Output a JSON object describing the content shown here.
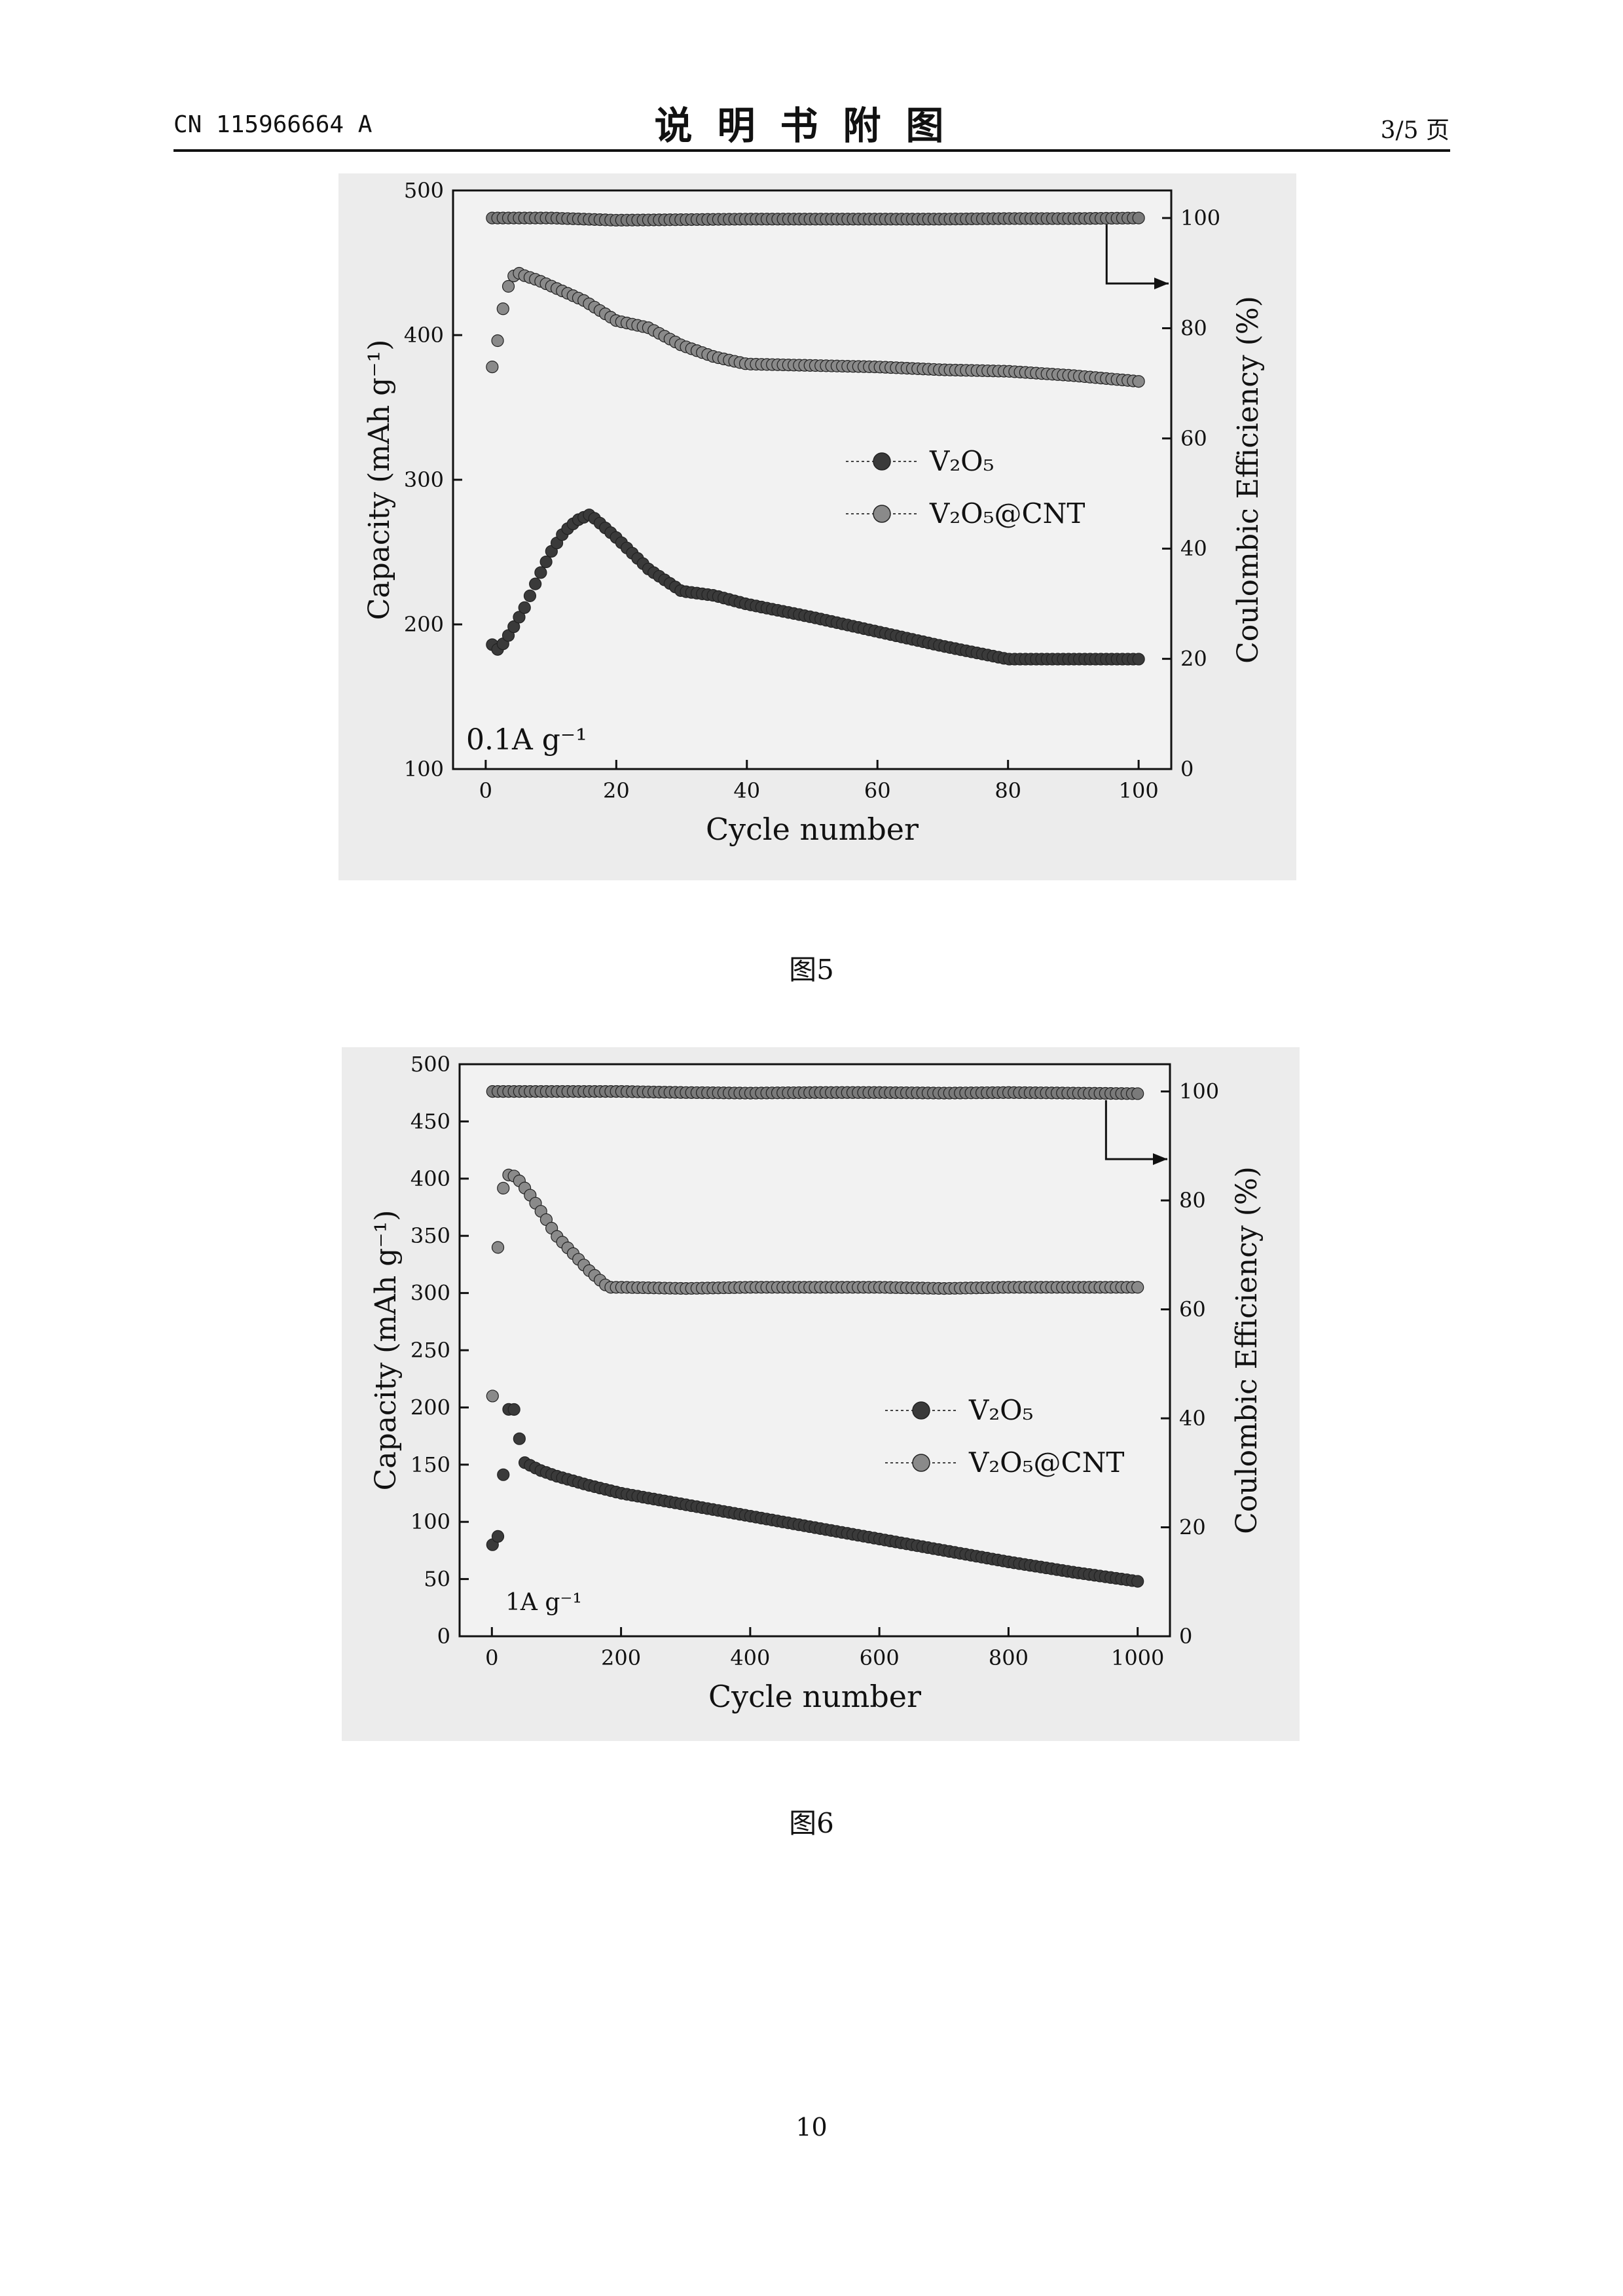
{
  "header": {
    "doc_number": "CN 115966664 A",
    "section_title": "说明书附图",
    "page_indicator": "3/5 页"
  },
  "figures": [
    {
      "caption": "图5",
      "current_label": "0.1A g⁻¹",
      "legend": [
        "V₂O₅",
        "V₂O₅@CNT"
      ]
    },
    {
      "caption": "图6",
      "current_label": "1A g⁻¹",
      "legend": [
        "V₂O₅",
        "V₂O₅@CNT"
      ]
    }
  ],
  "page_number": "10",
  "chart_data": [
    {
      "type": "scatter",
      "title": "",
      "xlabel": "Cycle number",
      "ylabel": "Capacity (mAh g⁻¹)",
      "y2label": "Coulombic Efficiency (%)",
      "xlim": [
        -5,
        105
      ],
      "ylim": [
        100,
        500
      ],
      "y2lim": [
        0,
        105
      ],
      "xticks": [
        0,
        20,
        40,
        60,
        80,
        100
      ],
      "yticks": [
        100,
        200,
        300,
        400,
        500
      ],
      "y2ticks": [
        0,
        20,
        40,
        60,
        80,
        100
      ],
      "grid": false,
      "legend_position": "center-right",
      "annotation": "0.1A g⁻¹",
      "series": [
        {
          "name": "V₂O₅",
          "axis": "left",
          "marker_color": "#3a3a3a",
          "x": [
            1,
            2,
            4,
            6,
            8,
            10,
            12,
            14,
            16,
            20,
            25,
            30,
            35,
            40,
            50,
            60,
            70,
            80,
            90,
            100
          ],
          "y": [
            186,
            182,
            196,
            212,
            232,
            250,
            264,
            272,
            276,
            260,
            238,
            223,
            220,
            214,
            205,
            195,
            185,
            176,
            176,
            176
          ]
        },
        {
          "name": "V₂O₅@CNT",
          "axis": "left",
          "marker_color": "#8a8a8a",
          "x": [
            1,
            2,
            3,
            4,
            5,
            6,
            8,
            10,
            12,
            15,
            20,
            25,
            30,
            35,
            40,
            50,
            60,
            70,
            80,
            90,
            100
          ],
          "y": [
            378,
            400,
            428,
            440,
            443,
            441,
            438,
            434,
            430,
            424,
            410,
            405,
            393,
            385,
            380,
            379,
            378,
            376,
            375,
            372,
            368
          ]
        },
        {
          "name": "",
          "axis": "right",
          "marker_color": "#7a7a7a",
          "x": [
            1,
            10,
            20,
            30,
            40,
            50,
            60,
            70,
            80,
            90,
            100
          ],
          "y": [
            100,
            100,
            99.6,
            99.7,
            99.8,
            99.8,
            99.8,
            99.8,
            99.9,
            99.9,
            100
          ]
        }
      ]
    },
    {
      "type": "scatter",
      "title": "",
      "xlabel": "Cycle number",
      "ylabel": "Capacity (mAh g⁻¹)",
      "y2label": "Coulombic Efficiency (%)",
      "xlim": [
        -50,
        1050
      ],
      "ylim": [
        0,
        500
      ],
      "y2lim": [
        0,
        105
      ],
      "xticks": [
        0,
        200,
        400,
        600,
        800,
        1000
      ],
      "yticks": [
        0,
        50,
        100,
        150,
        200,
        250,
        300,
        350,
        400,
        450,
        500
      ],
      "y2ticks": [
        0,
        20,
        40,
        60,
        80,
        100
      ],
      "grid": false,
      "legend_position": "center-right",
      "annotation": "1A g⁻¹",
      "series": [
        {
          "name": "V₂O₅",
          "axis": "left",
          "marker_color": "#3a3a3a",
          "x": [
            1,
            5,
            10,
            15,
            20,
            25,
            30,
            40,
            50,
            75,
            100,
            150,
            200,
            300,
            400,
            500,
            600,
            700,
            800,
            900,
            1000
          ],
          "y": [
            80,
            70,
            90,
            120,
            160,
            195,
            212,
            180,
            152,
            145,
            140,
            132,
            125,
            115,
            105,
            95,
            85,
            75,
            65,
            56,
            48
          ]
        },
        {
          "name": "V₂O₅@CNT",
          "axis": "left",
          "marker_color": "#8a8a8a",
          "x": [
            1,
            3,
            5,
            8,
            10,
            15,
            20,
            30,
            40,
            60,
            80,
            100,
            150,
            180,
            200,
            300,
            400,
            500,
            600,
            700,
            800,
            900,
            1000
          ],
          "y": [
            210,
            240,
            280,
            320,
            350,
            380,
            402,
            404,
            400,
            385,
            368,
            350,
            320,
            305,
            305,
            304,
            305,
            305,
            305,
            304,
            305,
            305,
            305
          ]
        },
        {
          "name": "",
          "axis": "right",
          "marker_color": "#7a7a7a",
          "x": [
            1,
            100,
            200,
            300,
            400,
            500,
            600,
            700,
            800,
            900,
            1000
          ],
          "y": [
            100,
            100,
            100,
            99.8,
            99.7,
            99.8,
            99.8,
            99.7,
            99.8,
            99.7,
            99.6
          ]
        }
      ]
    }
  ]
}
